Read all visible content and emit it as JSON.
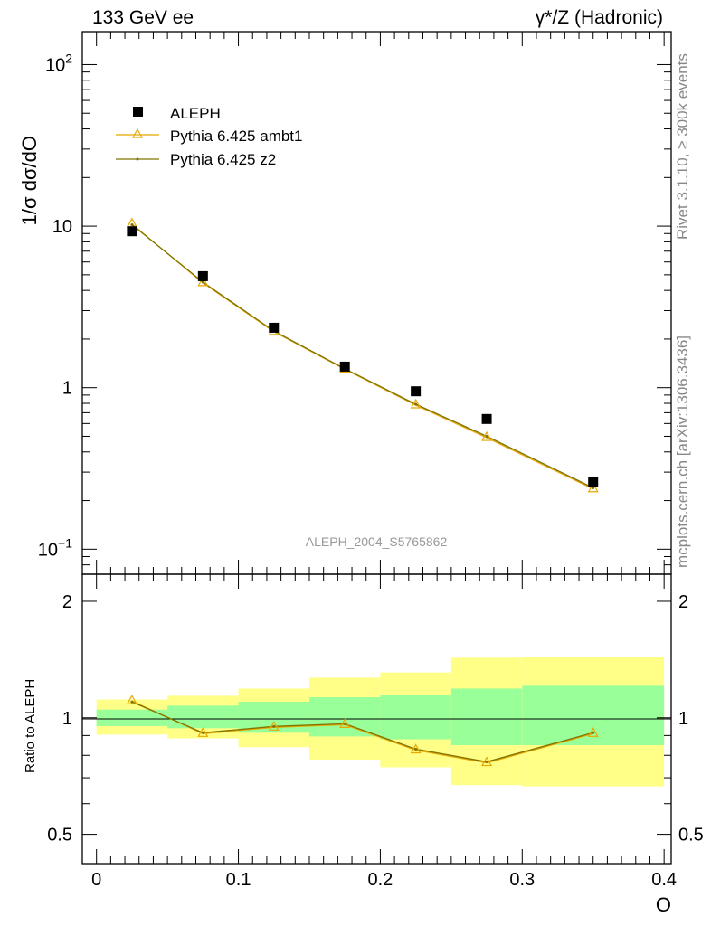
{
  "header": {
    "left": "133 GeV ee",
    "right": "γ*/Z (Hadronic)"
  },
  "side_labels": {
    "rivet": "Rivet 3.1.10, ≥ 300k events",
    "mcplots": "mcplots.cern.ch [arXiv:1306.3436]"
  },
  "watermark": "ALEPH_2004_S5765862",
  "legend": {
    "data": "ALEPH",
    "ambt1": "Pythia 6.425 ambt1",
    "z2": "Pythia 6.425 z2"
  },
  "colors": {
    "data": "#000000",
    "ambt1": "#e8a800",
    "z2": "#7f7400",
    "band_inner": "#99ff99",
    "band_outer": "#ffff88"
  },
  "chart_data": [
    {
      "type": "scatter",
      "panel": "main",
      "ylabel": "1/σ  dσ/dO",
      "yscale": "log",
      "ylim": [
        0.07,
        160
      ],
      "xlim": [
        -0.01,
        0.405
      ],
      "yticks": [
        {
          "value": 100,
          "base": "10",
          "exp": "2"
        },
        {
          "value": 10,
          "base": "10",
          "exp": ""
        },
        {
          "value": 1,
          "base": "1",
          "exp": ""
        },
        {
          "value": 0.1,
          "base": "10",
          "exp": "−1"
        }
      ],
      "series": [
        {
          "name": "ALEPH",
          "x": [
            0.025,
            0.075,
            0.125,
            0.175,
            0.225,
            0.275,
            0.35
          ],
          "y": [
            9.3,
            4.9,
            2.35,
            1.35,
            0.95,
            0.64,
            0.26
          ]
        },
        {
          "name": "Pythia 6.425 ambt1",
          "x": [
            0.025,
            0.075,
            0.125,
            0.175,
            0.225,
            0.275,
            0.35
          ],
          "y": [
            10.3,
            4.45,
            2.22,
            1.3,
            0.78,
            0.49,
            0.236
          ]
        },
        {
          "name": "Pythia 6.425 z2",
          "x": [
            0.025,
            0.075,
            0.125,
            0.175,
            0.225,
            0.275,
            0.35
          ],
          "y": [
            10.2,
            4.5,
            2.24,
            1.31,
            0.79,
            0.5,
            0.24
          ]
        }
      ]
    },
    {
      "type": "line",
      "panel": "ratio",
      "ylabel": "Ratio to ALEPH",
      "xlabel": "O",
      "yscale": "log",
      "ylim": [
        0.42,
        2.35
      ],
      "xlim": [
        -0.01,
        0.405
      ],
      "xticks": [
        "0",
        "0.1",
        "0.2",
        "0.3",
        "0.4"
      ],
      "xtick_values": [
        0,
        0.1,
        0.2,
        0.3,
        0.4
      ],
      "yticks": [
        {
          "value": 2,
          "label": "2"
        },
        {
          "value": 1,
          "label": "1"
        },
        {
          "value": 0.5,
          "label": "0.5"
        }
      ],
      "bands": [
        {
          "xlo": 0.0,
          "xhi": 0.05,
          "inner": [
            0.952,
            1.05
          ],
          "outer": [
            0.905,
            1.115
          ]
        },
        {
          "xlo": 0.05,
          "xhi": 0.1,
          "inner": [
            0.94,
            1.075
          ],
          "outer": [
            0.885,
            1.14
          ]
        },
        {
          "xlo": 0.1,
          "xhi": 0.15,
          "inner": [
            0.915,
            1.1
          ],
          "outer": [
            0.84,
            1.19
          ]
        },
        {
          "xlo": 0.15,
          "xhi": 0.2,
          "inner": [
            0.895,
            1.13
          ],
          "outer": [
            0.78,
            1.27
          ]
        },
        {
          "xlo": 0.2,
          "xhi": 0.25,
          "inner": [
            0.88,
            1.145
          ],
          "outer": [
            0.745,
            1.31
          ]
        },
        {
          "xlo": 0.25,
          "xhi": 0.3,
          "inner": [
            0.85,
            1.19
          ],
          "outer": [
            0.67,
            1.43
          ]
        },
        {
          "xlo": 0.3,
          "xhi": 0.4,
          "inner": [
            0.85,
            1.21
          ],
          "outer": [
            0.665,
            1.44
          ]
        }
      ],
      "series": [
        {
          "name": "Pythia 6.425 ambt1",
          "x": [
            0.025,
            0.075,
            0.125,
            0.175,
            0.225,
            0.275,
            0.35
          ],
          "y": [
            1.105,
            0.91,
            0.945,
            0.96,
            0.825,
            0.765,
            0.91
          ]
        },
        {
          "name": "Pythia 6.425 z2",
          "x": [
            0.025,
            0.075,
            0.125,
            0.175,
            0.225,
            0.275,
            0.35
          ],
          "y": [
            1.1,
            0.915,
            0.95,
            0.965,
            0.83,
            0.77,
            0.915
          ]
        }
      ]
    }
  ]
}
